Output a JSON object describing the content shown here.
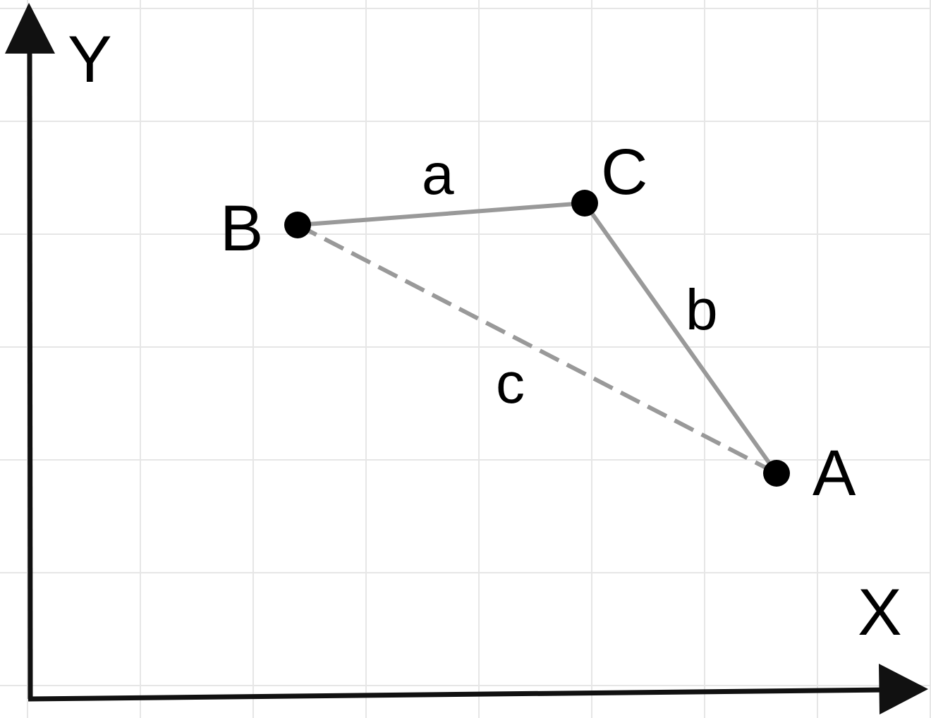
{
  "axes": {
    "x_label": "X",
    "y_label": "Y"
  },
  "points": {
    "A": {
      "label": "A"
    },
    "B": {
      "label": "B"
    },
    "C": {
      "label": "C"
    }
  },
  "edges": {
    "a": {
      "label": "a",
      "from": "B",
      "to": "C",
      "style": "solid"
    },
    "b": {
      "label": "b",
      "from": "C",
      "to": "A",
      "style": "solid"
    },
    "c": {
      "label": "c",
      "from": "B",
      "to": "A",
      "style": "dashed"
    }
  },
  "colors": {
    "axis": "#111111",
    "point": "#000000",
    "edge": "#999999",
    "grid": "#e6e6e6",
    "background": "#ffffff"
  },
  "grid": true
}
